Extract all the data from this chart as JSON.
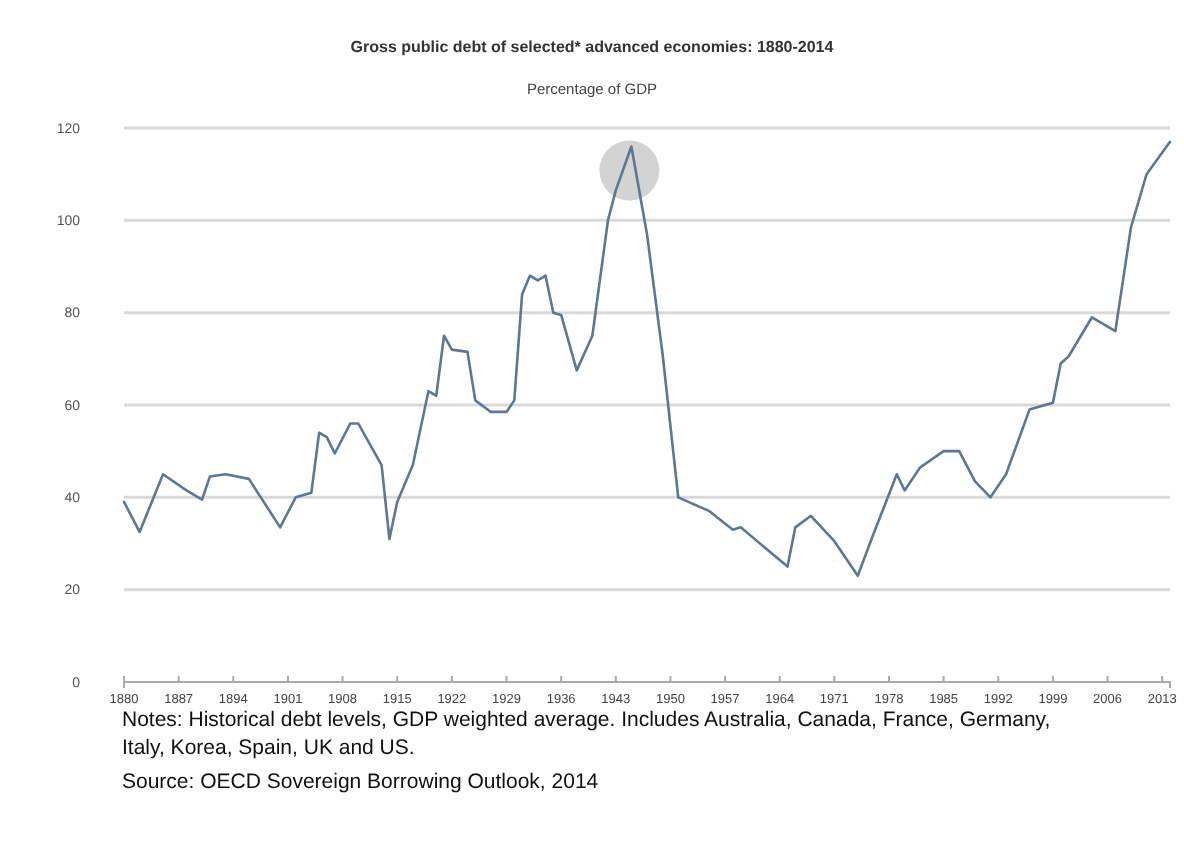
{
  "chart_data": {
    "type": "line",
    "title": "Gross public debt of selected* advanced economies:  1880-2014",
    "subtitle": "Percentage of GDP",
    "x": [
      1880,
      1882,
      1885,
      1888,
      1890,
      1891,
      1893,
      1896,
      1900,
      1902,
      1904,
      1905,
      1906,
      1907,
      1909,
      1910,
      1913,
      1914,
      1915,
      1917,
      1919,
      1920,
      1921,
      1922,
      1924,
      1925,
      1927,
      1929,
      1930,
      1931,
      1932,
      1933,
      1934,
      1935,
      1936,
      1938,
      1940,
      1942,
      1943,
      1945,
      1947,
      1949,
      1951,
      1955,
      1958,
      1959,
      1965,
      1966,
      1968,
      1971,
      1974,
      1976,
      1979,
      1980,
      1982,
      1985,
      1987,
      1989,
      1991,
      1993,
      1996,
      1999,
      2000,
      2001,
      2004,
      2007,
      2009,
      2011,
      2014
    ],
    "series": [
      {
        "color": "#5b7894",
        "values": [
          39,
          32.5,
          45,
          41.5,
          39.5,
          44.5,
          45,
          44,
          33.5,
          40,
          41,
          54,
          53,
          49.5,
          56,
          56,
          47,
          31,
          39,
          47,
          63,
          62,
          75,
          72,
          71.5,
          61,
          58.5,
          58.5,
          61,
          84,
          88,
          87,
          88,
          80,
          79.5,
          67.5,
          75,
          100,
          106.5,
          116,
          97,
          71,
          40,
          37,
          33,
          33.5,
          25,
          33.5,
          36,
          30.5,
          23,
          32,
          45,
          41.5,
          46.5,
          50,
          50,
          43.5,
          40,
          45,
          59,
          60.5,
          69,
          70.5,
          79,
          76,
          98.5,
          110,
          117
        ]
      }
    ],
    "xlim": [
      1880,
      2014
    ],
    "xticks": [
      1880,
      1887,
      1894,
      1901,
      1908,
      1915,
      1922,
      1929,
      1936,
      1943,
      1950,
      1957,
      1964,
      1971,
      1978,
      1985,
      1992,
      1999,
      2006,
      2013
    ],
    "ylim": [
      0,
      120
    ],
    "yticks": [
      0,
      20,
      40,
      60,
      80,
      100,
      120
    ],
    "grid": "y",
    "annotations": [
      "Notes: Historical debt levels, GDP weighted average. Includes Australia, Canada, France, Germany, Italy, Korea, Spain, UK and US.",
      "Source: OECD Sovereign Borrowing Outlook, 2014"
    ]
  }
}
